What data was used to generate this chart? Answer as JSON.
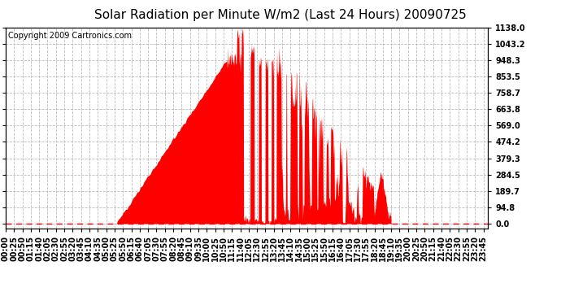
{
  "title": "Solar Radiation per Minute W/m2 (Last 24 Hours) 20090725",
  "copyright": "Copyright 2009 Cartronics.com",
  "y_ticks": [
    0.0,
    94.8,
    189.7,
    284.5,
    379.3,
    474.2,
    569.0,
    663.8,
    758.7,
    853.5,
    948.3,
    1043.2,
    1138.0
  ],
  "ymax": 1138.0,
  "ymin": -30,
  "fill_color": "#ff0000",
  "line_color": "#ff0000",
  "bg_color": "#ffffff",
  "grid_color": "#bbbbbb",
  "dashed_zero_color": "#ff0000",
  "title_fontsize": 11,
  "copyright_fontsize": 7,
  "tick_fontsize": 7
}
